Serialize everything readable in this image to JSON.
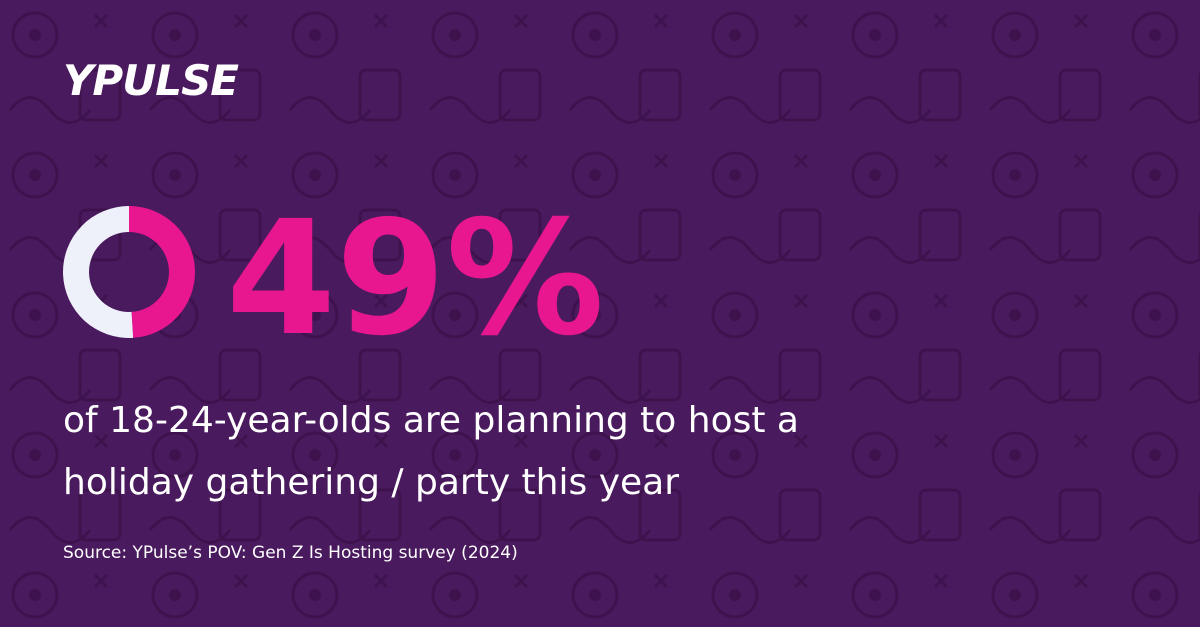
{
  "logo": "YPULSE",
  "chart_data": {
    "type": "donut",
    "values": [
      49,
      51
    ],
    "colors": [
      "#e8168f",
      "#eef0fa"
    ],
    "value_labels": [
      "49%",
      null
    ],
    "caption": [
      "of 18-24-year-olds are planning to host a",
      "holiday gathering / party this year"
    ],
    "source": "Source: YPulse’s POV: Gen Z Is Hosting survey (2024)"
  }
}
